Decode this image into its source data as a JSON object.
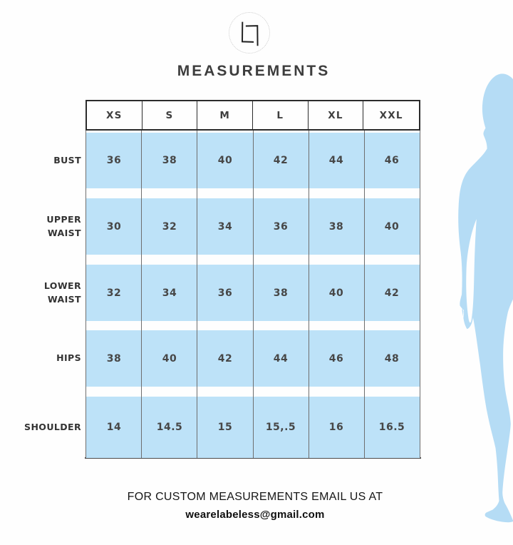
{
  "brand": {
    "logo": "labeless-monogram"
  },
  "title": "MEASUREMENTS",
  "size_chart": {
    "type": "table",
    "columns": [
      "XS",
      "S",
      "M",
      "L",
      "XL",
      "XXL"
    ],
    "rows": [
      {
        "label": "BUST",
        "values": [
          "36",
          "38",
          "40",
          "42",
          "44",
          "46"
        ]
      },
      {
        "label": "UPPER WAIST",
        "values": [
          "30",
          "32",
          "34",
          "36",
          "38",
          "40"
        ]
      },
      {
        "label": "LOWER WAIST",
        "values": [
          "32",
          "34",
          "36",
          "38",
          "40",
          "42"
        ]
      },
      {
        "label": "HIPS",
        "values": [
          "38",
          "40",
          "42",
          "44",
          "46",
          "48"
        ]
      },
      {
        "label": "SHOULDER",
        "values": [
          "14",
          "14.5",
          "15",
          "15,.5",
          "16",
          "16.5"
        ]
      }
    ]
  },
  "footer": {
    "line1": "FOR CUSTOM MEASUREMENTS EMAIL US AT",
    "email": "wearelabeless@gmail.com"
  },
  "colors": {
    "cell_blue": "#BDE2F8",
    "silhouette_blue": "#B5DCF5",
    "border_dark": "#2b2b2b",
    "grid_gray": "#6e6e6e",
    "text_dark": "#3d3d3d"
  }
}
